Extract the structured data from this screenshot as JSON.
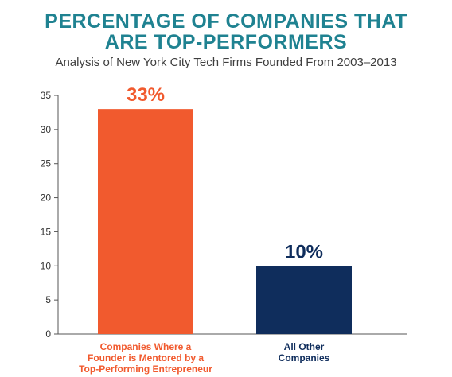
{
  "chart_data": {
    "type": "bar",
    "title_lines": [
      "PERCENTAGE OF COMPANIES THAT",
      "ARE TOP-PERFORMERS"
    ],
    "subtitle": "Analysis of New York City Tech Firms Founded From 2003–2013",
    "xlabel": "",
    "ylabel": "",
    "ylim": [
      0,
      35
    ],
    "yticks": [
      0,
      5,
      10,
      15,
      20,
      25,
      30,
      35
    ],
    "grid": false,
    "categories": [
      {
        "label_lines": [
          "Companies Where a",
          "Founder is Mentored by a",
          "Top-Performing Entrepreneur"
        ],
        "value": 33,
        "data_label": "33%",
        "color": "#f15a2e",
        "label_color": "#f15a2e"
      },
      {
        "label_lines": [
          "All Other",
          "Companies"
        ],
        "value": 10,
        "data_label": "10%",
        "color": "#0f2d5c",
        "label_color": "#0f2d5c"
      }
    ]
  },
  "colors": {
    "title": "#1f8291",
    "axis": "#555555"
  }
}
